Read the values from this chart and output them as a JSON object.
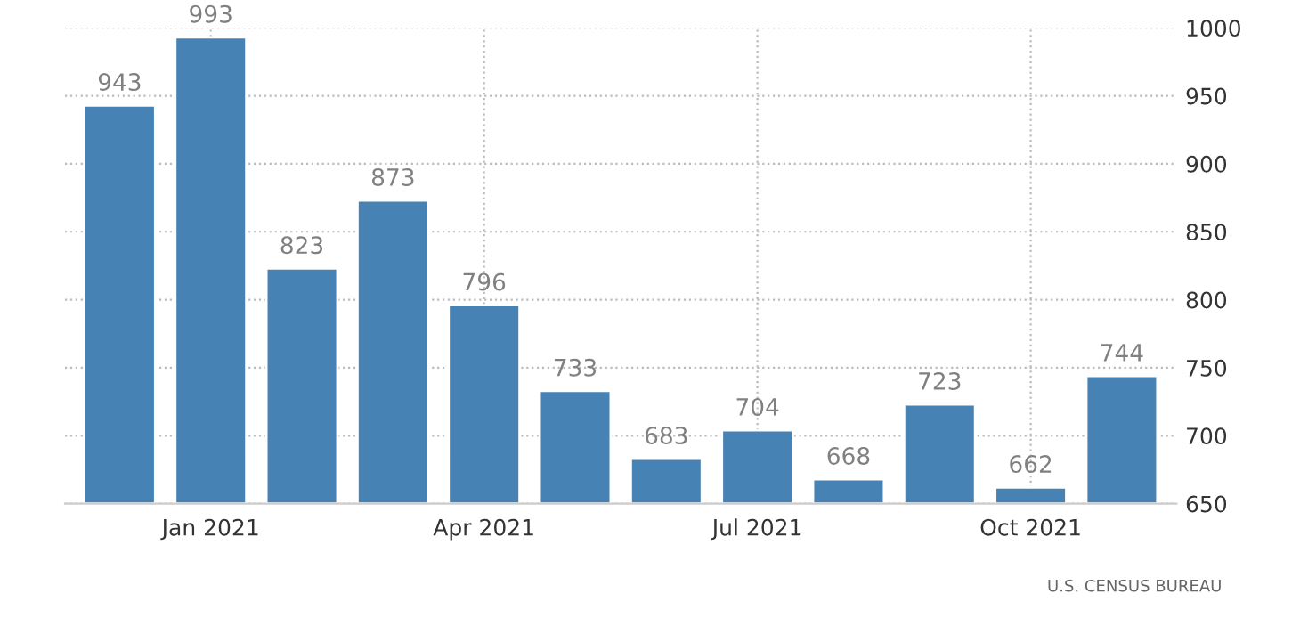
{
  "chart_data": {
    "type": "bar",
    "categories": [
      null,
      "Jan 2021",
      null,
      null,
      "Apr 2021",
      null,
      null,
      "Jul 2021",
      null,
      null,
      "Oct 2021",
      null
    ],
    "values": [
      943,
      993,
      823,
      873,
      796,
      733,
      683,
      704,
      668,
      723,
      662,
      744
    ],
    "color": "#4682b4",
    "ylim": [
      650,
      1000
    ],
    "yticks": [
      650,
      700,
      750,
      800,
      850,
      900,
      950,
      1000
    ],
    "grid": true,
    "data_labels": true,
    "annotations": [
      "U.S. CENSUS BUREAU"
    ]
  }
}
